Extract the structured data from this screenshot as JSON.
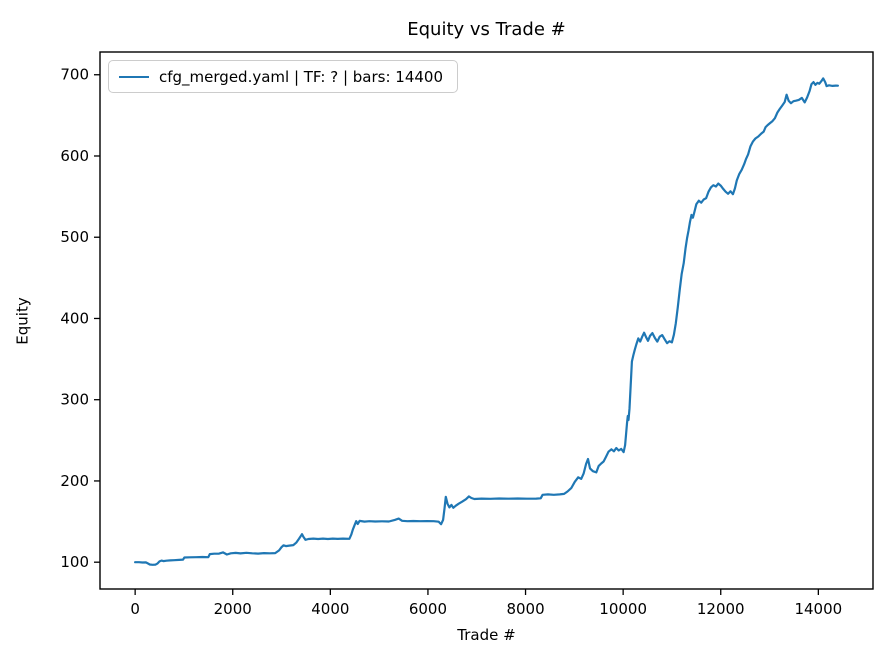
{
  "figure": {
    "background": "#ffffff"
  },
  "chart_data": {
    "type": "line",
    "title": "Equity vs Trade #",
    "xlabel": "Trade #",
    "ylabel": "Equity",
    "xlim": [
      -720,
      15120
    ],
    "ylim": [
      67,
      728
    ],
    "xticks": [
      0,
      2000,
      4000,
      6000,
      8000,
      10000,
      12000,
      14000
    ],
    "xtick_labels": [
      "0",
      "2000",
      "4000",
      "6000",
      "8000",
      "10000",
      "12000",
      "14000"
    ],
    "yticks": [
      100,
      200,
      300,
      400,
      500,
      600,
      700
    ],
    "ytick_labels": [
      "100",
      "200",
      "300",
      "400",
      "500",
      "600",
      "700"
    ],
    "grid": false,
    "legend": {
      "position": "upper-left",
      "entries": [
        {
          "label": "cfg_merged.yaml | TF: ? | bars: 14400",
          "color": "#1f77b4"
        }
      ]
    },
    "series": [
      {
        "name": "cfg_merged.yaml | TF: ? | bars: 14400",
        "color": "#1f77b4",
        "line_width": 2.2,
        "points": [
          [
            0,
            100
          ],
          [
            80,
            100
          ],
          [
            150,
            99.6
          ],
          [
            220,
            99.8
          ],
          [
            260,
            98.5
          ],
          [
            300,
            97.2
          ],
          [
            360,
            96.8
          ],
          [
            420,
            97
          ],
          [
            460,
            98.5
          ],
          [
            500,
            101
          ],
          [
            540,
            102
          ],
          [
            580,
            101.4
          ],
          [
            640,
            101.8
          ],
          [
            720,
            102.2
          ],
          [
            800,
            102.4
          ],
          [
            900,
            102.8
          ],
          [
            980,
            103.2
          ],
          [
            1010,
            105.8
          ],
          [
            1120,
            106
          ],
          [
            1250,
            106.2
          ],
          [
            1380,
            106.4
          ],
          [
            1500,
            106.2
          ],
          [
            1530,
            110
          ],
          [
            1620,
            110.4
          ],
          [
            1720,
            110.6
          ],
          [
            1800,
            112
          ],
          [
            1880,
            109.5
          ],
          [
            1960,
            111
          ],
          [
            2060,
            111.4
          ],
          [
            2160,
            110.8
          ],
          [
            2280,
            111.6
          ],
          [
            2400,
            111
          ],
          [
            2520,
            110.6
          ],
          [
            2640,
            111.2
          ],
          [
            2760,
            110.9
          ],
          [
            2870,
            111.2
          ],
          [
            2950,
            114.5
          ],
          [
            3000,
            118.5
          ],
          [
            3040,
            120.8
          ],
          [
            3090,
            119.8
          ],
          [
            3160,
            120.4
          ],
          [
            3240,
            121
          ],
          [
            3300,
            124
          ],
          [
            3360,
            129
          ],
          [
            3420,
            134.5
          ],
          [
            3450,
            131
          ],
          [
            3490,
            127.5
          ],
          [
            3550,
            128.6
          ],
          [
            3650,
            129
          ],
          [
            3750,
            128.6
          ],
          [
            3850,
            129
          ],
          [
            3950,
            128.6
          ],
          [
            4050,
            129
          ],
          [
            4150,
            128.7
          ],
          [
            4260,
            129
          ],
          [
            4390,
            128.8
          ],
          [
            4430,
            134
          ],
          [
            4460,
            140
          ],
          [
            4500,
            146
          ],
          [
            4530,
            150.5
          ],
          [
            4560,
            147
          ],
          [
            4600,
            150.8
          ],
          [
            4700,
            150
          ],
          [
            4800,
            150.4
          ],
          [
            4920,
            150.1
          ],
          [
            5060,
            150.3
          ],
          [
            5200,
            150.1
          ],
          [
            5320,
            152
          ],
          [
            5400,
            153.6
          ],
          [
            5470,
            151
          ],
          [
            5580,
            150.4
          ],
          [
            5700,
            150.7
          ],
          [
            5840,
            150.4
          ],
          [
            5980,
            150.6
          ],
          [
            6120,
            150.4
          ],
          [
            6220,
            149.8
          ],
          [
            6270,
            146.8
          ],
          [
            6310,
            152
          ],
          [
            6340,
            166
          ],
          [
            6365,
            180.5
          ],
          [
            6400,
            172
          ],
          [
            6440,
            167.5
          ],
          [
            6480,
            170.5
          ],
          [
            6520,
            167
          ],
          [
            6570,
            169.5
          ],
          [
            6630,
            172
          ],
          [
            6700,
            174.5
          ],
          [
            6780,
            177.5
          ],
          [
            6840,
            181
          ],
          [
            6890,
            179
          ],
          [
            6950,
            177.8
          ],
          [
            7100,
            178.3
          ],
          [
            7280,
            178
          ],
          [
            7460,
            178.4
          ],
          [
            7650,
            178.1
          ],
          [
            7840,
            178.4
          ],
          [
            8030,
            178.1
          ],
          [
            8220,
            178.3
          ],
          [
            8310,
            178.6
          ],
          [
            8350,
            183
          ],
          [
            8460,
            183.4
          ],
          [
            8580,
            183
          ],
          [
            8700,
            183.5
          ],
          [
            8790,
            184
          ],
          [
            8860,
            187
          ],
          [
            8940,
            191.5
          ],
          [
            9010,
            199
          ],
          [
            9080,
            204.5
          ],
          [
            9140,
            202.5
          ],
          [
            9190,
            209
          ],
          [
            9240,
            221
          ],
          [
            9280,
            227
          ],
          [
            9320,
            215.5
          ],
          [
            9380,
            212
          ],
          [
            9450,
            210.5
          ],
          [
            9500,
            218.5
          ],
          [
            9550,
            221.5
          ],
          [
            9600,
            224
          ],
          [
            9650,
            230
          ],
          [
            9700,
            236
          ],
          [
            9760,
            239
          ],
          [
            9810,
            236.5
          ],
          [
            9860,
            240.5
          ],
          [
            9910,
            237.5
          ],
          [
            9960,
            239.5
          ],
          [
            10010,
            235.5
          ],
          [
            10040,
            244
          ],
          [
            10060,
            258
          ],
          [
            10080,
            271
          ],
          [
            10095,
            280
          ],
          [
            10110,
            275
          ],
          [
            10130,
            289
          ],
          [
            10155,
            318
          ],
          [
            10180,
            347
          ],
          [
            10210,
            355
          ],
          [
            10240,
            362
          ],
          [
            10270,
            368
          ],
          [
            10310,
            375.5
          ],
          [
            10350,
            371.5
          ],
          [
            10390,
            377.5
          ],
          [
            10430,
            382.5
          ],
          [
            10470,
            377
          ],
          [
            10510,
            372.5
          ],
          [
            10550,
            378.5
          ],
          [
            10600,
            382
          ],
          [
            10650,
            376
          ],
          [
            10700,
            371.5
          ],
          [
            10750,
            377.5
          ],
          [
            10800,
            379.5
          ],
          [
            10850,
            374.5
          ],
          [
            10900,
            369.5
          ],
          [
            10950,
            372
          ],
          [
            11000,
            370.5
          ],
          [
            11040,
            380
          ],
          [
            11080,
            394
          ],
          [
            11120,
            414
          ],
          [
            11160,
            436
          ],
          [
            11200,
            455
          ],
          [
            11240,
            468
          ],
          [
            11280,
            487
          ],
          [
            11310,
            499
          ],
          [
            11340,
            508
          ],
          [
            11370,
            519
          ],
          [
            11400,
            527.5
          ],
          [
            11430,
            524
          ],
          [
            11460,
            531
          ],
          [
            11500,
            540.5
          ],
          [
            11550,
            545
          ],
          [
            11600,
            542.5
          ],
          [
            11650,
            546.5
          ],
          [
            11700,
            548
          ],
          [
            11750,
            556
          ],
          [
            11800,
            561.5
          ],
          [
            11850,
            564
          ],
          [
            11900,
            562.5
          ],
          [
            11950,
            566
          ],
          [
            12000,
            563.5
          ],
          [
            12050,
            559.5
          ],
          [
            12100,
            556
          ],
          [
            12150,
            553.5
          ],
          [
            12200,
            556.5
          ],
          [
            12250,
            553
          ],
          [
            12290,
            560
          ],
          [
            12330,
            570
          ],
          [
            12380,
            578
          ],
          [
            12430,
            583
          ],
          [
            12480,
            590
          ],
          [
            12520,
            596.5
          ],
          [
            12560,
            602
          ],
          [
            12610,
            612
          ],
          [
            12660,
            618
          ],
          [
            12710,
            621.5
          ],
          [
            12770,
            624
          ],
          [
            12830,
            627.5
          ],
          [
            12880,
            630
          ],
          [
            12920,
            635.5
          ],
          [
            12960,
            638
          ],
          [
            13010,
            640.5
          ],
          [
            13060,
            643
          ],
          [
            13110,
            646.5
          ],
          [
            13160,
            653.5
          ],
          [
            13210,
            658
          ],
          [
            13260,
            662
          ],
          [
            13310,
            666.5
          ],
          [
            13350,
            675.5
          ],
          [
            13390,
            668
          ],
          [
            13440,
            665
          ],
          [
            13490,
            667.5
          ],
          [
            13540,
            668
          ],
          [
            13600,
            669
          ],
          [
            13660,
            671.5
          ],
          [
            13720,
            666
          ],
          [
            13770,
            672
          ],
          [
            13820,
            680
          ],
          [
            13860,
            688.5
          ],
          [
            13900,
            691
          ],
          [
            13940,
            687.5
          ],
          [
            13980,
            690
          ],
          [
            14020,
            689
          ],
          [
            14060,
            692
          ],
          [
            14100,
            695.5
          ],
          [
            14140,
            691
          ],
          [
            14170,
            686
          ],
          [
            14220,
            687
          ],
          [
            14290,
            686.3
          ],
          [
            14360,
            686.6
          ],
          [
            14400,
            686.5
          ]
        ]
      }
    ]
  }
}
